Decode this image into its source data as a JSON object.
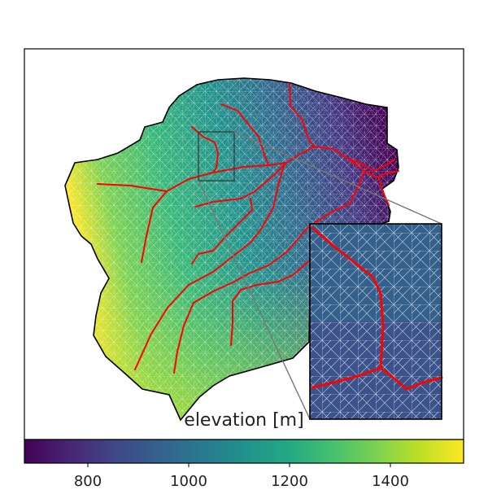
{
  "chart_data": {
    "type": "heatmap",
    "title": "",
    "colorbar": {
      "label": "elevation [m]",
      "range": [
        680,
        1550
      ],
      "ticks": [
        800,
        1000,
        1200,
        1400
      ],
      "colormap": "viridis",
      "orientation": "horizontal",
      "placement": "bottom"
    },
    "elements": [
      "watershed-mesh",
      "stream-network",
      "zoom-inset"
    ],
    "stream_color": "#ff0000",
    "boundary_color": "#000000",
    "mesh_color": "#ffffff",
    "grid": false
  }
}
